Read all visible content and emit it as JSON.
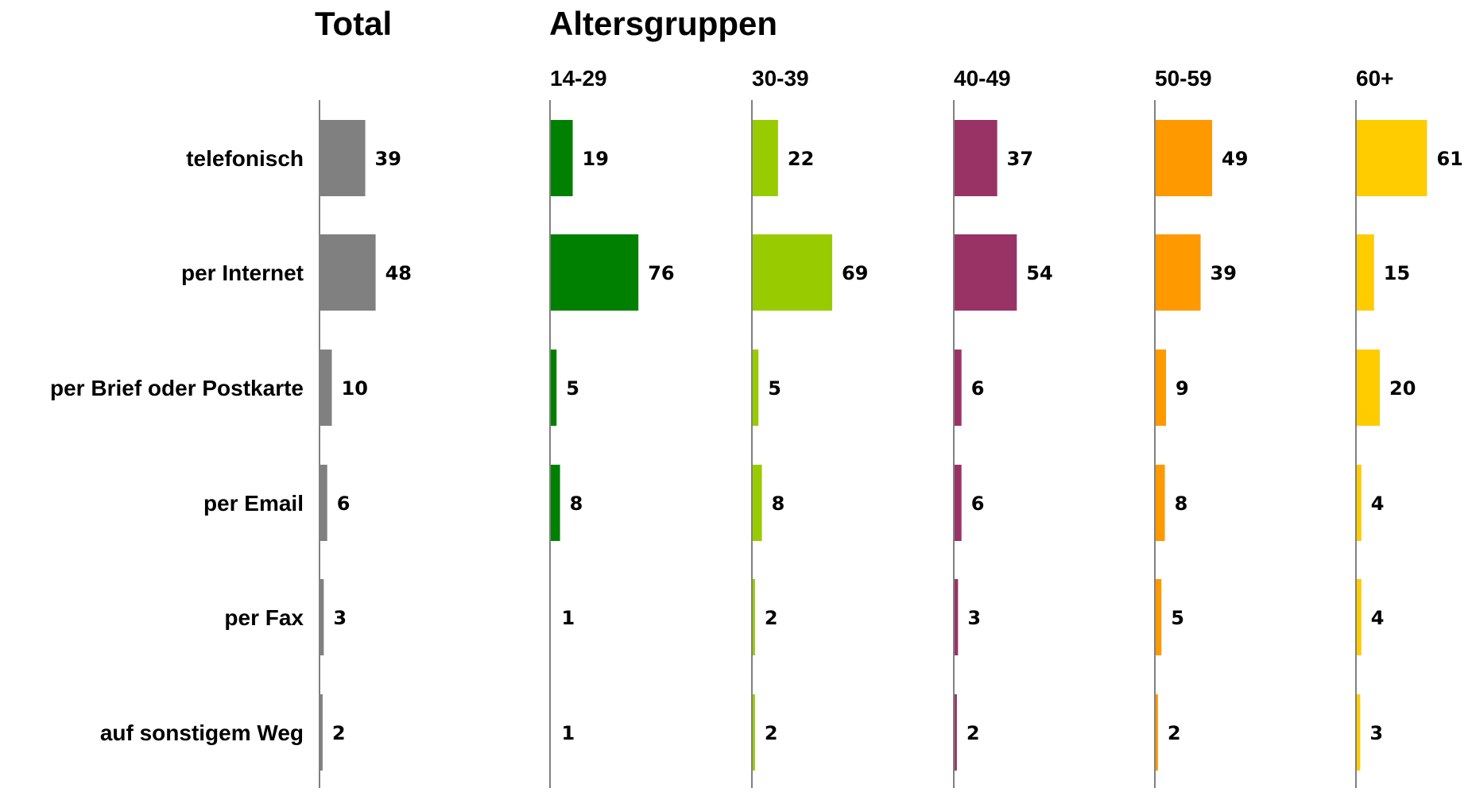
{
  "headings": {
    "total": "Total",
    "groups": "Altersgruppen"
  },
  "colors": {
    "axis": "#808080",
    "background": "#ffffff"
  },
  "chart_data": {
    "type": "bar",
    "orientation": "horizontal",
    "categories": [
      "telefonisch",
      "per Internet",
      "per Brief oder Postkarte",
      "per Email",
      "per Fax",
      "auf sonstigem Weg"
    ],
    "series": [
      {
        "name": "Total",
        "color": "#808080",
        "values": [
          39,
          48,
          10,
          6,
          3,
          2
        ]
      },
      {
        "name": "14-29",
        "color": "#008000",
        "values": [
          19,
          76,
          5,
          8,
          1,
          1
        ]
      },
      {
        "name": "30-39",
        "color": "#99cc00",
        "values": [
          22,
          69,
          5,
          8,
          2,
          2
        ]
      },
      {
        "name": "40-49",
        "color": "#993366",
        "values": [
          37,
          54,
          6,
          6,
          3,
          2
        ]
      },
      {
        "name": "50-59",
        "color": "#ff9900",
        "values": [
          49,
          39,
          9,
          8,
          5,
          2
        ]
      },
      {
        "name": "60+",
        "color": "#ffcc00",
        "values": [
          61,
          15,
          20,
          4,
          4,
          3
        ]
      }
    ],
    "xlim": [
      0,
      100
    ],
    "grid": false,
    "legend": "none"
  }
}
